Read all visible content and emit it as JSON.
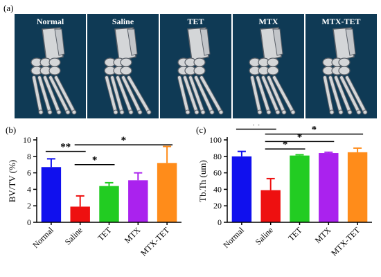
{
  "panel_a": {
    "label": "(a)",
    "titles": [
      "Normal",
      "Saline",
      "TET",
      "MTX",
      "MTX-TET"
    ]
  },
  "chart_data": [
    {
      "type": "bar",
      "panel_label": "(b)",
      "title": "",
      "xlabel": "",
      "ylabel": "BV/TV (%)",
      "categories": [
        "Normal",
        "Saline",
        "TET",
        "MTX",
        "MTX-TET"
      ],
      "values": [
        6.7,
        1.9,
        4.4,
        5.1,
        7.2
      ],
      "errors": [
        1.0,
        1.3,
        0.4,
        0.9,
        2.0
      ],
      "colors": [
        "#1010ee",
        "#ee1010",
        "#22cc22",
        "#aa22ee",
        "#ff8c1a"
      ],
      "ylim": [
        0,
        10
      ],
      "yticks": [
        0,
        2,
        4,
        6,
        8,
        10
      ],
      "grid": false,
      "significance": [
        {
          "from": 0,
          "to": 1,
          "y": 8.6,
          "label": "**"
        },
        {
          "from": 1,
          "to": 2,
          "y": 7.0,
          "label": "*"
        },
        {
          "from": 1,
          "to": 4,
          "y": 9.4,
          "label": "*"
        }
      ]
    },
    {
      "type": "bar",
      "panel_label": "(c)",
      "title": "",
      "xlabel": "",
      "ylabel": "Tb.Th (um)",
      "categories": [
        "Normal",
        "Saline",
        "TET",
        "MTX",
        "MTX-TET"
      ],
      "values": [
        80,
        39,
        81,
        84,
        85
      ],
      "errors": [
        6,
        14,
        1,
        1,
        5
      ],
      "colors": [
        "#1010ee",
        "#ee1010",
        "#22cc22",
        "#aa22ee",
        "#ff8c1a"
      ],
      "ylim": [
        0,
        100
      ],
      "yticks": [
        0,
        20,
        40,
        60,
        80,
        100
      ],
      "grid": false,
      "significance": [
        {
          "from": 0,
          "to": 1,
          "y": 113,
          "label": "**"
        },
        {
          "from": 1,
          "to": 2,
          "y": 89,
          "label": "*"
        },
        {
          "from": 1,
          "to": 3,
          "y": 98,
          "label": "*"
        },
        {
          "from": 1,
          "to": 4,
          "y": 107,
          "label": "*"
        }
      ]
    }
  ]
}
